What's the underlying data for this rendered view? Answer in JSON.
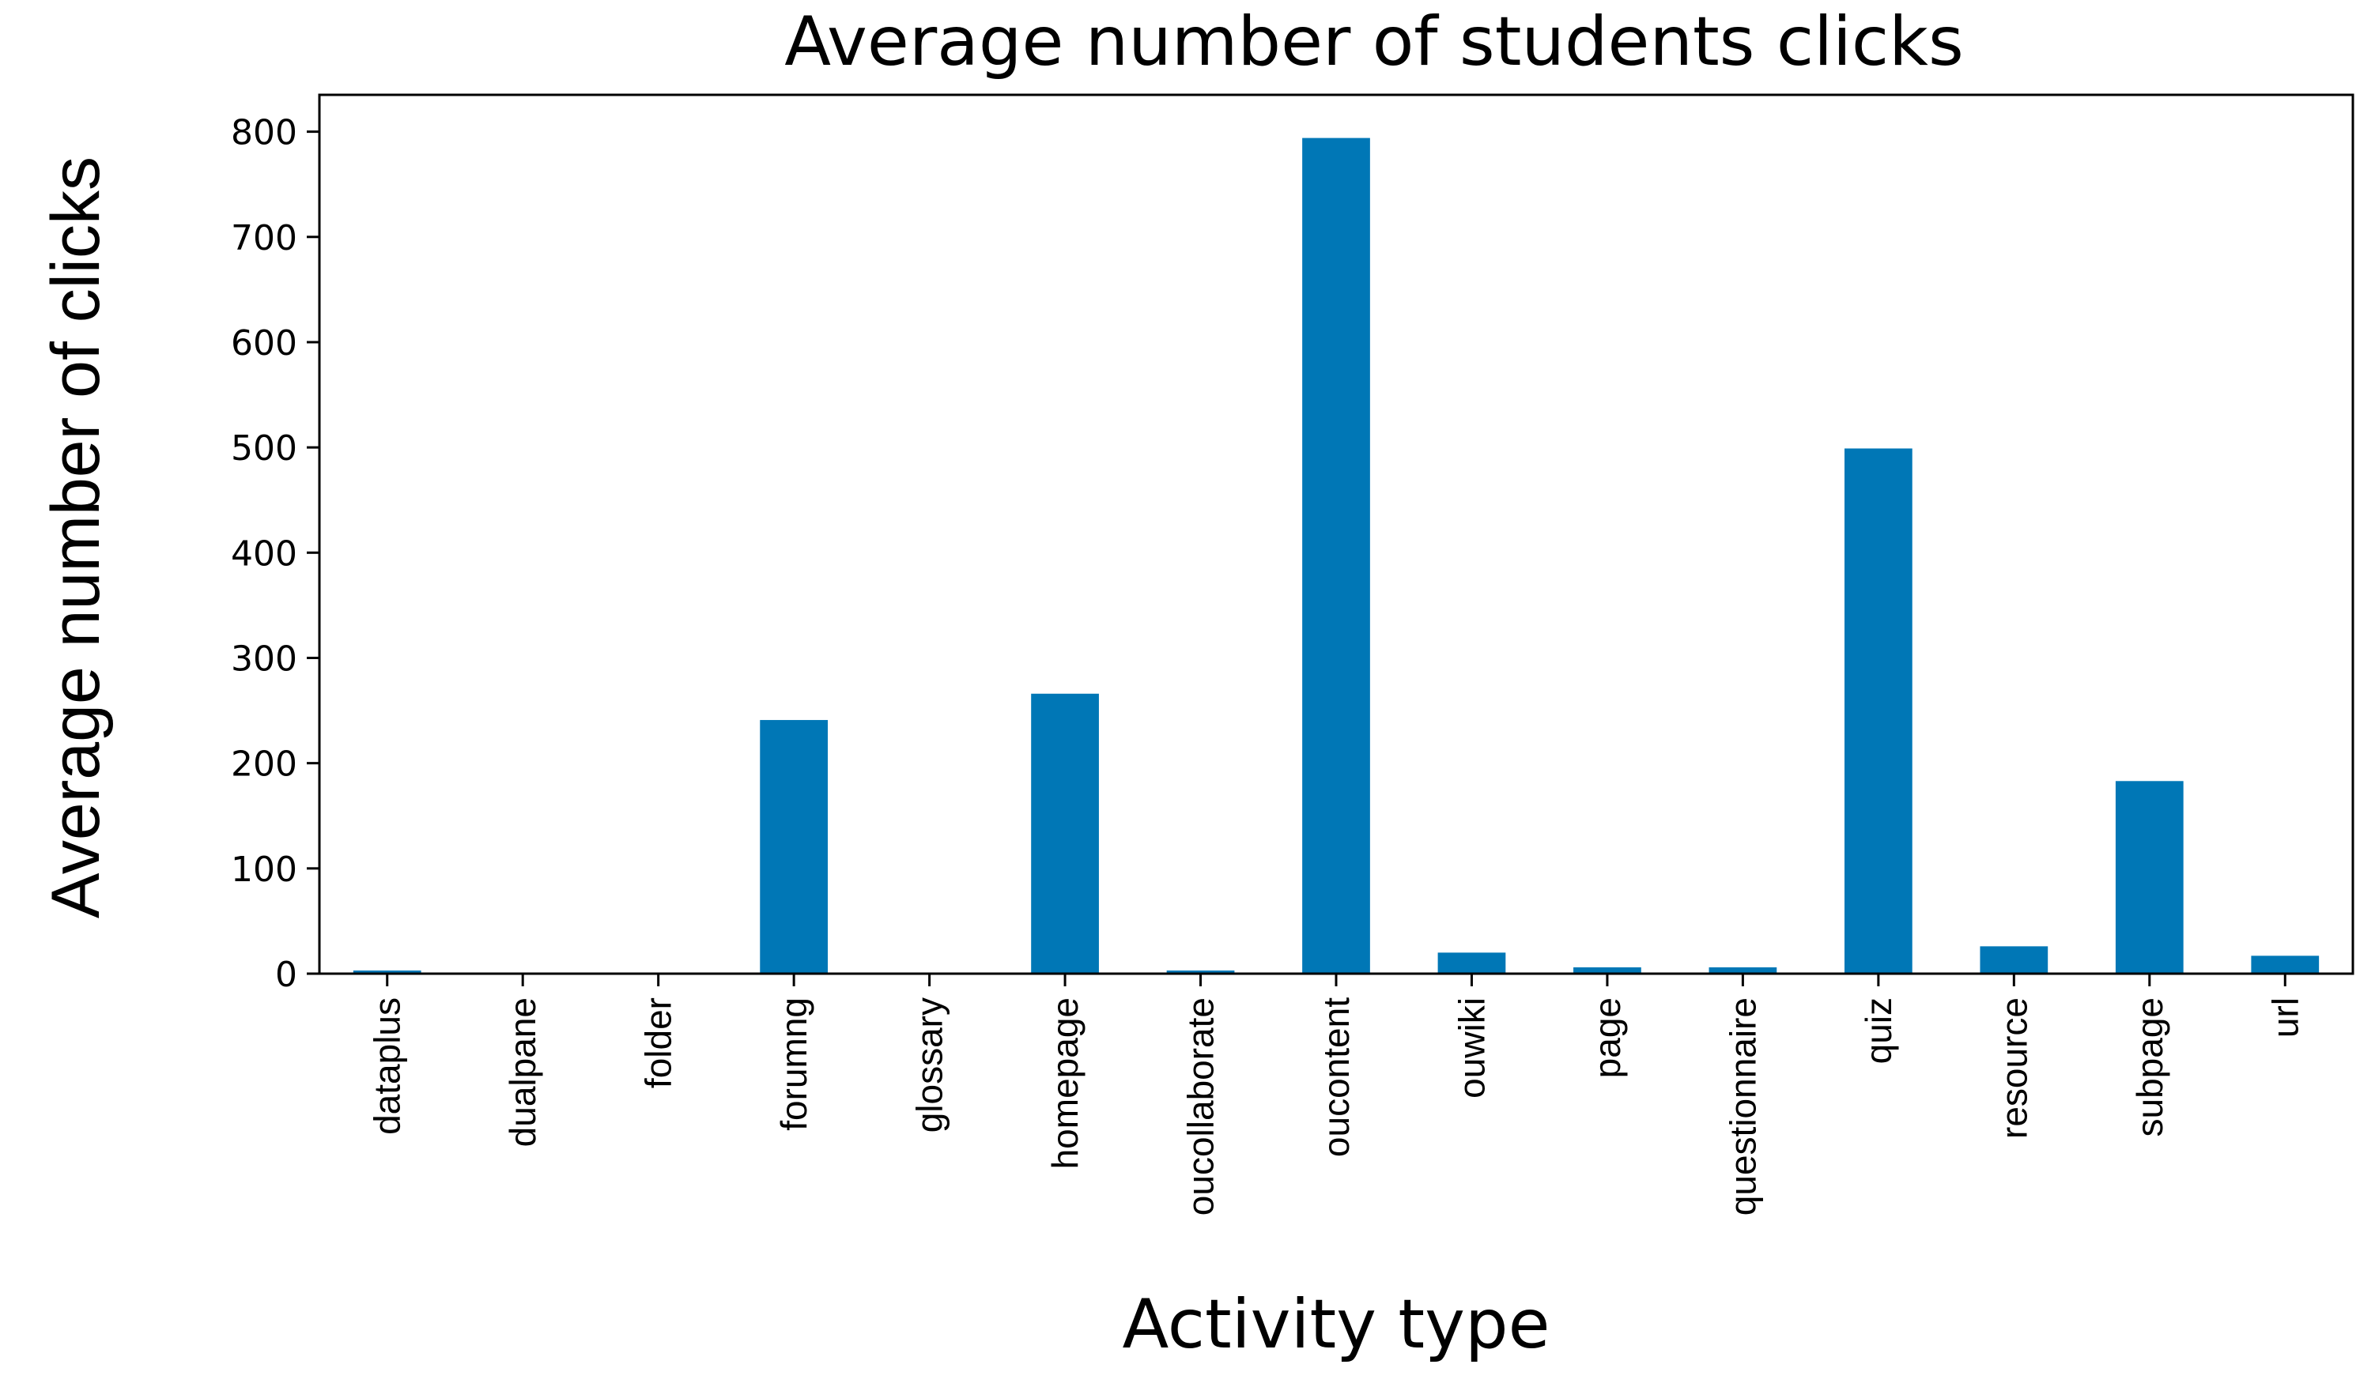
{
  "chart_data": {
    "type": "bar",
    "title": "Average number of students clicks",
    "xlabel": "Activity type",
    "ylabel": "Average number of clicks",
    "categories": [
      "dataplus",
      "dualpane",
      "folder",
      "forumng",
      "glossary",
      "homepage",
      "oucollaborate",
      "oucontent",
      "ouwiki",
      "page",
      "questionnaire",
      "quiz",
      "resource",
      "subpage",
      "url"
    ],
    "values": [
      3,
      0,
      0,
      241,
      0,
      266,
      3,
      794,
      20,
      6,
      6,
      499,
      26,
      183,
      17
    ],
    "ylim": [
      0,
      835
    ],
    "yticks": [
      0,
      100,
      200,
      300,
      400,
      500,
      600,
      700,
      800
    ],
    "bar_color": "#0077b6",
    "grid": false,
    "legend": "none"
  }
}
